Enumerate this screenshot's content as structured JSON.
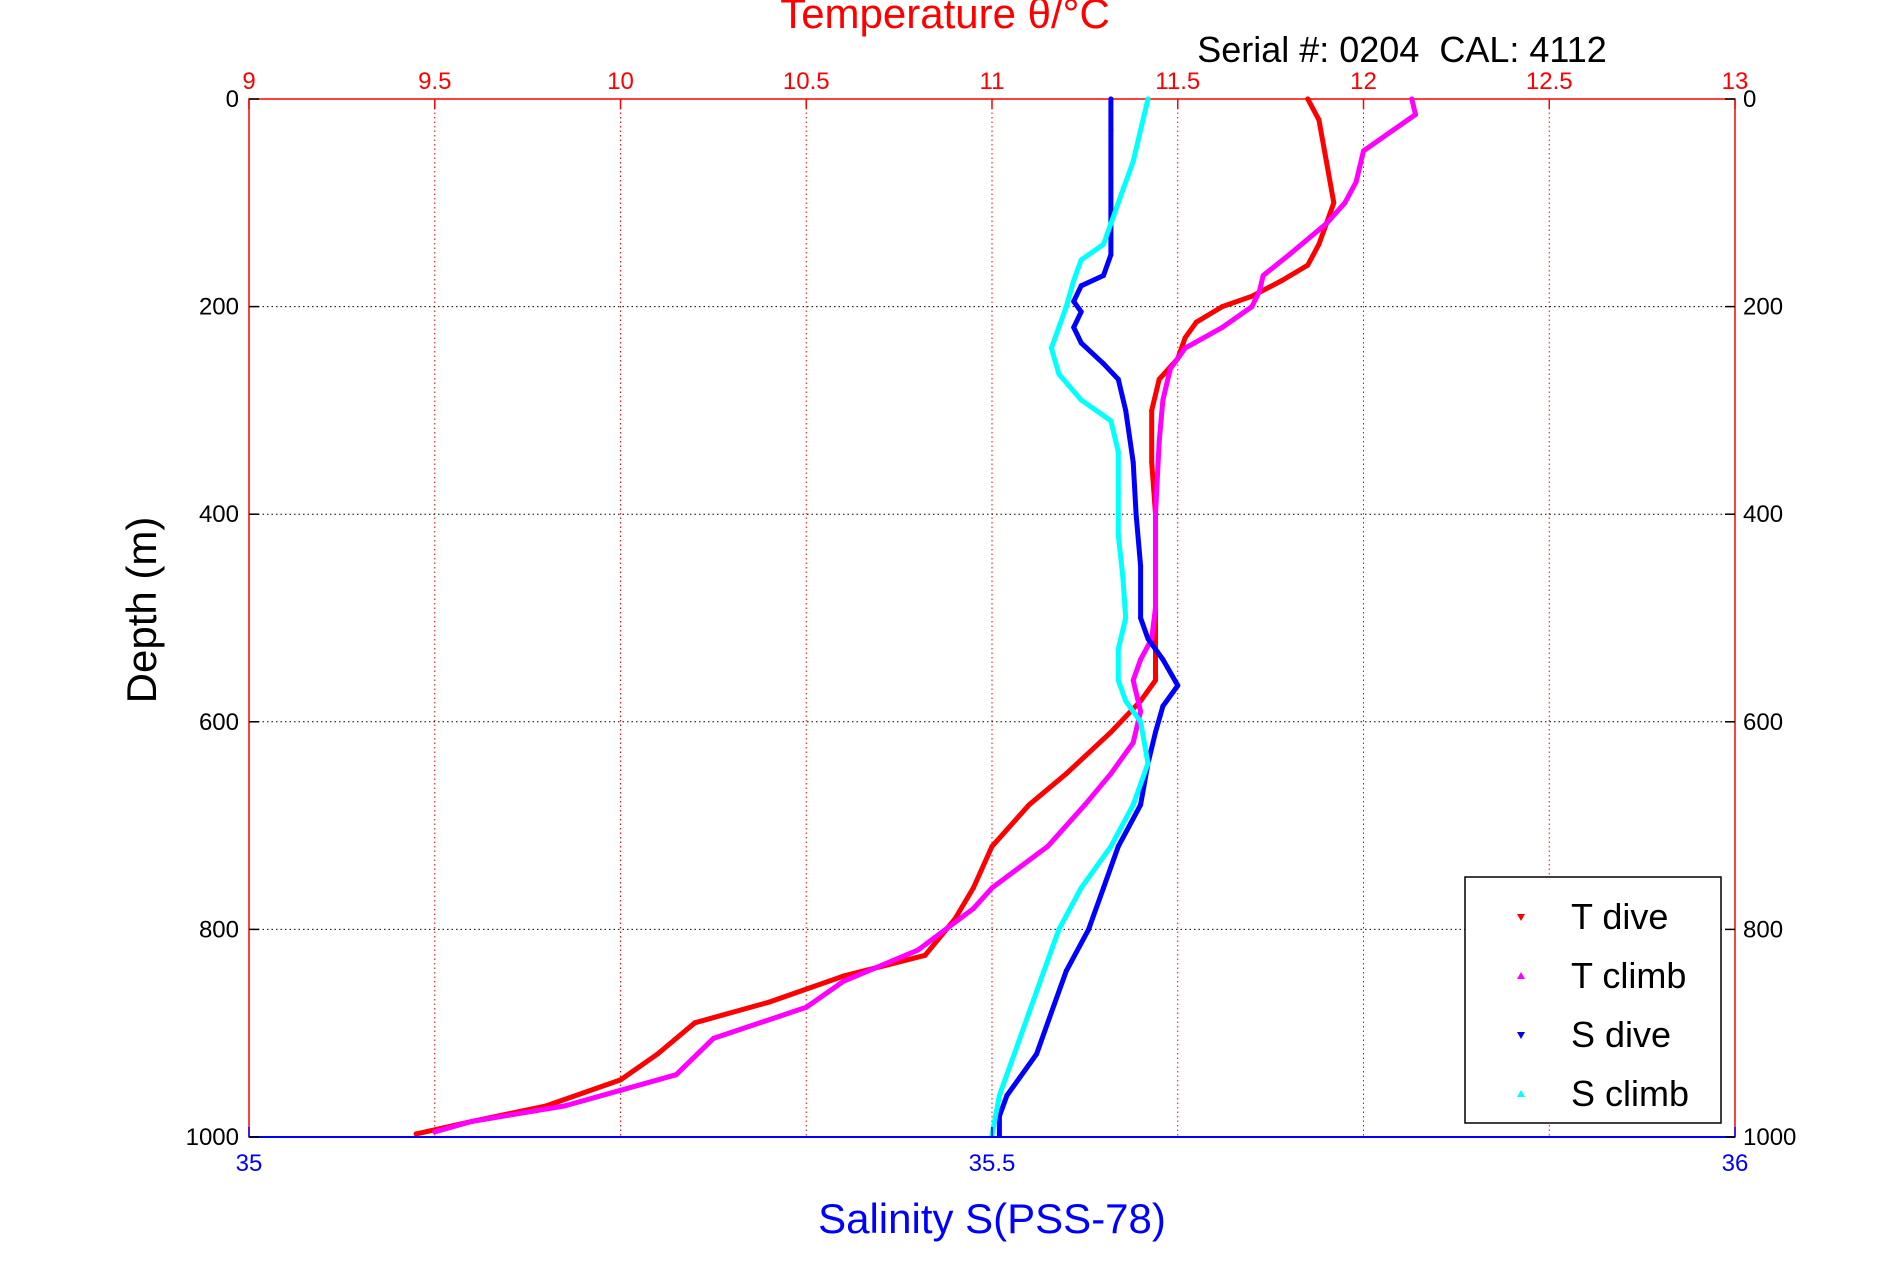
{
  "chart_data": {
    "type": "scatter",
    "title": "Temperature θ/°C",
    "subtitle": "Serial #: 0204  CAL: 4112",
    "ylabel": "Depth (m)",
    "xlabel_bottom": "Salinity S(PSS-78)",
    "temperature_axis": {
      "range": [
        9,
        13
      ],
      "ticks": [
        9,
        9.5,
        10,
        10.5,
        11,
        11.5,
        12,
        12.5,
        13
      ],
      "tick_labels": [
        "9",
        "9.5",
        "10",
        "10.5",
        "11",
        "11.5",
        "12",
        "12.5",
        "13"
      ]
    },
    "salinity_axis": {
      "range": [
        35,
        36
      ],
      "ticks": [
        35,
        35.5,
        36
      ],
      "tick_labels": [
        "35",
        "35.5",
        "36"
      ]
    },
    "depth_axis": {
      "range": [
        0,
        1000
      ],
      "reversed": true,
      "ticks": [
        0,
        200,
        400,
        600,
        800,
        1000
      ],
      "tick_labels": [
        "0",
        "200",
        "400",
        "600",
        "800",
        "1000"
      ]
    },
    "grid": true,
    "legend_position": "bottom-right",
    "series": [
      {
        "name": "T dive",
        "axis": "temperature",
        "color": "#ff0000",
        "marker": "down-triangle",
        "points": [
          [
            11.85,
            0
          ],
          [
            11.88,
            20
          ],
          [
            11.9,
            60
          ],
          [
            11.92,
            100
          ],
          [
            11.9,
            120
          ],
          [
            11.88,
            140
          ],
          [
            11.85,
            160
          ],
          [
            11.78,
            175
          ],
          [
            11.7,
            190
          ],
          [
            11.62,
            200
          ],
          [
            11.55,
            215
          ],
          [
            11.52,
            230
          ],
          [
            11.5,
            250
          ],
          [
            11.45,
            270
          ],
          [
            11.43,
            300
          ],
          [
            11.43,
            350
          ],
          [
            11.44,
            400
          ],
          [
            11.44,
            450
          ],
          [
            11.44,
            500
          ],
          [
            11.44,
            540
          ],
          [
            11.44,
            560
          ],
          [
            11.4,
            580
          ],
          [
            11.32,
            610
          ],
          [
            11.2,
            650
          ],
          [
            11.1,
            680
          ],
          [
            11.0,
            720
          ],
          [
            10.95,
            760
          ],
          [
            10.9,
            790
          ],
          [
            10.82,
            825
          ],
          [
            10.6,
            845
          ],
          [
            10.4,
            870
          ],
          [
            10.2,
            890
          ],
          [
            10.1,
            920
          ],
          [
            10.0,
            945
          ],
          [
            9.8,
            970
          ],
          [
            9.6,
            985
          ],
          [
            9.45,
            997
          ]
        ]
      },
      {
        "name": "T climb",
        "axis": "temperature",
        "color": "#ff00ff",
        "marker": "up-triangle",
        "points": [
          [
            12.13,
            0
          ],
          [
            12.14,
            15
          ],
          [
            12.08,
            30
          ],
          [
            12.0,
            50
          ],
          [
            11.98,
            80
          ],
          [
            11.95,
            100
          ],
          [
            11.9,
            120
          ],
          [
            11.8,
            150
          ],
          [
            11.73,
            170
          ],
          [
            11.72,
            185
          ],
          [
            11.7,
            200
          ],
          [
            11.62,
            220
          ],
          [
            11.52,
            240
          ],
          [
            11.48,
            260
          ],
          [
            11.46,
            290
          ],
          [
            11.45,
            330
          ],
          [
            11.44,
            400
          ],
          [
            11.44,
            460
          ],
          [
            11.44,
            490
          ],
          [
            11.43,
            520
          ],
          [
            11.4,
            540
          ],
          [
            11.38,
            560
          ],
          [
            11.4,
            590
          ],
          [
            11.38,
            620
          ],
          [
            11.32,
            650
          ],
          [
            11.25,
            680
          ],
          [
            11.15,
            720
          ],
          [
            11.0,
            760
          ],
          [
            10.95,
            780
          ],
          [
            10.8,
            820
          ],
          [
            10.6,
            850
          ],
          [
            10.5,
            875
          ],
          [
            10.25,
            905
          ],
          [
            10.15,
            940
          ],
          [
            10.0,
            955
          ],
          [
            9.85,
            970
          ],
          [
            9.6,
            985
          ],
          [
            9.5,
            995
          ]
        ]
      },
      {
        "name": "S dive",
        "axis": "salinity",
        "color": "#0000ff",
        "marker": "down-triangle",
        "points": [
          [
            35.58,
            0
          ],
          [
            35.58,
            30
          ],
          [
            35.58,
            80
          ],
          [
            35.58,
            110
          ],
          [
            35.58,
            130
          ],
          [
            35.58,
            150
          ],
          [
            35.575,
            170
          ],
          [
            35.56,
            180
          ],
          [
            35.555,
            195
          ],
          [
            35.56,
            205
          ],
          [
            35.555,
            220
          ],
          [
            35.56,
            235
          ],
          [
            35.575,
            255
          ],
          [
            35.585,
            270
          ],
          [
            35.59,
            300
          ],
          [
            35.595,
            350
          ],
          [
            35.597,
            400
          ],
          [
            35.6,
            450
          ],
          [
            35.6,
            500
          ],
          [
            35.605,
            520
          ],
          [
            35.615,
            540
          ],
          [
            35.625,
            565
          ],
          [
            35.615,
            585
          ],
          [
            35.61,
            610
          ],
          [
            35.605,
            640
          ],
          [
            35.6,
            680
          ],
          [
            35.585,
            720
          ],
          [
            35.575,
            760
          ],
          [
            35.565,
            800
          ],
          [
            35.55,
            840
          ],
          [
            35.54,
            880
          ],
          [
            35.53,
            920
          ],
          [
            35.51,
            960
          ],
          [
            35.505,
            980
          ],
          [
            35.505,
            998
          ]
        ]
      },
      {
        "name": "S climb",
        "axis": "salinity",
        "color": "#00ffff",
        "marker": "up-triangle",
        "points": [
          [
            35.605,
            0
          ],
          [
            35.6,
            30
          ],
          [
            35.595,
            60
          ],
          [
            35.585,
            100
          ],
          [
            35.58,
            120
          ],
          [
            35.575,
            140
          ],
          [
            35.56,
            155
          ],
          [
            35.555,
            175
          ],
          [
            35.55,
            200
          ],
          [
            35.545,
            220
          ],
          [
            35.54,
            240
          ],
          [
            35.545,
            265
          ],
          [
            35.56,
            290
          ],
          [
            35.58,
            310
          ],
          [
            35.585,
            340
          ],
          [
            35.585,
            380
          ],
          [
            35.585,
            420
          ],
          [
            35.588,
            460
          ],
          [
            35.59,
            500
          ],
          [
            35.585,
            530
          ],
          [
            35.585,
            560
          ],
          [
            35.59,
            580
          ],
          [
            35.6,
            600
          ],
          [
            35.605,
            640
          ],
          [
            35.595,
            680
          ],
          [
            35.58,
            720
          ],
          [
            35.56,
            760
          ],
          [
            35.545,
            800
          ],
          [
            35.535,
            840
          ],
          [
            35.525,
            880
          ],
          [
            35.515,
            920
          ],
          [
            35.505,
            960
          ],
          [
            35.5,
            998
          ]
        ]
      }
    ]
  }
}
